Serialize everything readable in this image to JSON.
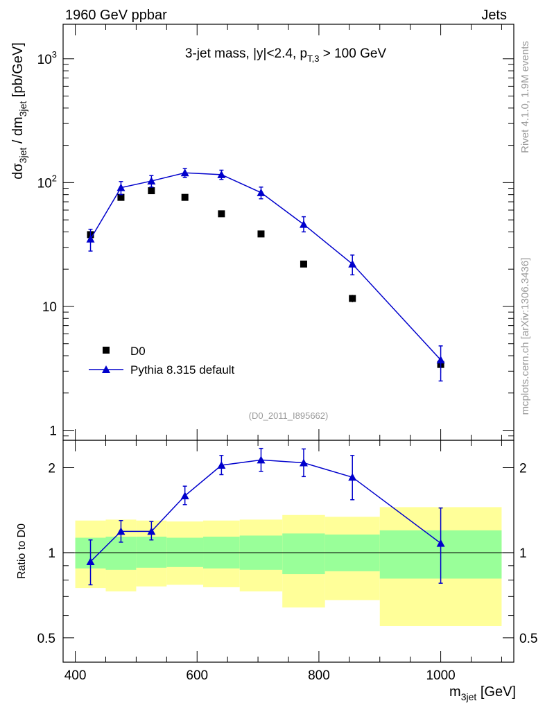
{
  "header": {
    "left": "1960 GeV ppbar",
    "right": "Jets"
  },
  "side": {
    "rivet": "Rivet 4.1.0,  1.9M events",
    "mcplots": "mcplots.cern.ch [arXiv:1306.3436]"
  },
  "colors": {
    "mc": "#0000cc",
    "band_inner": "#99ff99",
    "band_outer": "#ffff99",
    "data": "#000000",
    "id_label": "#999999"
  },
  "chart_data": [
    {
      "type": "scatter",
      "panel": "main",
      "title": {
        "main": "3-jet mass, |y|<2.4, p",
        "sub": "T,3",
        "tail": " > 100 GeV"
      },
      "analysis_id": "(D0_2011_I895662)",
      "yscale": "log",
      "ylim": [
        0.83,
        1900
      ],
      "xlim": [
        380,
        1120
      ],
      "ylabel": {
        "a": "dσ",
        "a_sub": "3jet",
        "b": " / dm",
        "b_sub": "3jet",
        "c": " [pb/GeV]"
      },
      "yticks": [
        {
          "value": 1,
          "base": "1",
          "exp": ""
        },
        {
          "value": 10,
          "base": "10",
          "exp": ""
        },
        {
          "value": 100,
          "base": "10",
          "exp": "2"
        },
        {
          "value": 1000,
          "base": "10",
          "exp": "3"
        }
      ],
      "legend": [
        {
          "label": "D0",
          "marker": "square"
        },
        {
          "label": "Pythia 8.315 default",
          "marker": "triangle-line"
        }
      ],
      "series": [
        {
          "name": "D0",
          "marker": "square",
          "x": [
            425,
            475,
            525,
            580,
            640,
            705,
            775,
            855,
            1000
          ],
          "y": [
            38,
            76,
            86,
            76,
            56,
            38.5,
            22,
            11.6,
            3.4
          ],
          "err": [
            3,
            4,
            4,
            4,
            3,
            2,
            1.2,
            0.8,
            0.5
          ]
        },
        {
          "name": "Pythia 8.315 default",
          "marker": "triangle",
          "x": [
            425,
            475,
            525,
            580,
            640,
            705,
            775,
            855,
            1000
          ],
          "y": [
            35,
            91,
            103,
            120,
            116,
            83,
            46,
            22,
            3.7
          ],
          "err_lo": [
            7,
            11,
            11,
            10,
            10,
            9,
            6,
            4,
            1.2
          ],
          "err_hi": [
            7,
            11,
            11,
            10,
            10,
            9,
            7,
            4,
            1.1
          ]
        }
      ]
    },
    {
      "type": "scatter",
      "panel": "ratio",
      "yscale": "log",
      "ylim": [
        0.41,
        2.5
      ],
      "xlim": [
        380,
        1120
      ],
      "ylabel": "Ratio to D0",
      "xlabel": {
        "a": "m",
        "sub": "3jet",
        "b": " [GeV]"
      },
      "xticks": [
        400,
        600,
        800,
        1000
      ],
      "yticks": [
        {
          "value": 0.5,
          "label": "0.5"
        },
        {
          "value": 1,
          "label": "1"
        },
        {
          "value": 2,
          "label": "2"
        }
      ],
      "bins": [
        400,
        450,
        500,
        550,
        610,
        670,
        740,
        810,
        900,
        1100
      ],
      "band_inner": {
        "lo": [
          0.88,
          0.87,
          0.885,
          0.89,
          0.88,
          0.87,
          0.84,
          0.86,
          0.81
        ],
        "hi": [
          1.13,
          1.14,
          1.14,
          1.13,
          1.14,
          1.15,
          1.17,
          1.16,
          1.2
        ]
      },
      "band_outer": {
        "lo": [
          0.75,
          0.73,
          0.76,
          0.77,
          0.755,
          0.73,
          0.64,
          0.68,
          0.55
        ],
        "hi": [
          1.3,
          1.31,
          1.3,
          1.29,
          1.3,
          1.31,
          1.36,
          1.34,
          1.45
        ]
      },
      "series": [
        {
          "name": "Pythia 8.315 default / D0",
          "x": [
            425,
            475,
            525,
            580,
            640,
            705,
            775,
            855,
            1000
          ],
          "y": [
            0.93,
            1.19,
            1.19,
            1.59,
            2.04,
            2.13,
            2.08,
            1.85,
            1.08
          ],
          "err_lo": [
            0.16,
            0.1,
            0.08,
            0.11,
            0.15,
            0.19,
            0.22,
            0.31,
            0.3
          ],
          "err_hi": [
            0.18,
            0.11,
            0.1,
            0.13,
            0.17,
            0.21,
            0.25,
            0.36,
            0.36
          ]
        }
      ]
    }
  ]
}
